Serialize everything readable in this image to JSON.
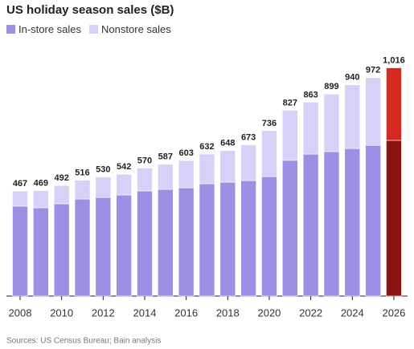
{
  "chart_data": {
    "type": "stacked_bar",
    "title": "US holiday season sales ($B)",
    "source": "Sources: US Census Bureau; Bain analysis",
    "categories": [
      "2008",
      null,
      "2010",
      null,
      "2012",
      null,
      "2014",
      null,
      "2016",
      null,
      "2018",
      null,
      "2020",
      null,
      "2022",
      null,
      "2024",
      null,
      "2026"
    ],
    "series": [
      {
        "name": "In-store sales",
        "color": "#9d8fe3",
        "values": [
          400,
          393,
          411,
          432,
          439,
          450,
          468,
          475,
          482,
          500,
          507,
          514,
          532,
          604,
          632,
          643,
          657,
          671,
          693
        ]
      },
      {
        "name": "Nonstore sales",
        "color": "#d6d2f7",
        "values": [
          67,
          76,
          81,
          84,
          91,
          92,
          102,
          112,
          121,
          132,
          141,
          159,
          204,
          223,
          231,
          256,
          283,
          301,
          323
        ]
      }
    ],
    "totals": [
      467,
      469,
      492,
      516,
      530,
      542,
      570,
      587,
      603,
      632,
      648,
      673,
      736,
      827,
      863,
      899,
      940,
      972,
      {
        "value": 1016,
        "label": "1,016"
      }
    ],
    "highlight_index": 18,
    "highlight_colors": [
      "#8c1111",
      "#d42a1f"
    ],
    "ylim": [
      0,
      1050
    ]
  }
}
